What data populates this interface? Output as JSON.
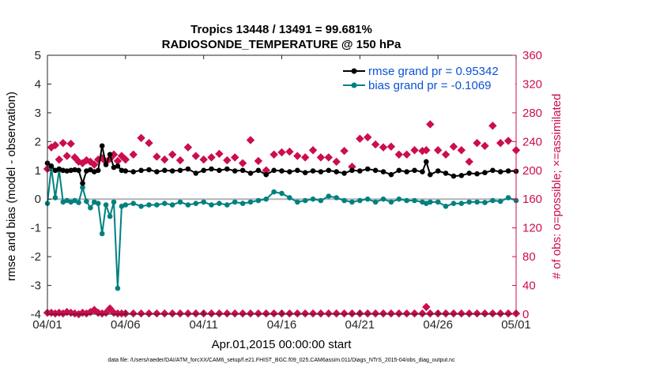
{
  "chart_data": {
    "type": "line",
    "title": "Tropics 13448 / 13491 = 99.681%",
    "subtitle": "RADIOSONDE_TEMPERATURE @ 150 hPa",
    "xlabel": "Apr.01,2015 00:00:00 start",
    "ylabel": "rmse and bias (model - observation)",
    "y2label": "# of obs: o=possible; ×=assimilated",
    "footer": "data file: /Users/raeder/DAI/ATM_forcXX/CAM6_setup/f.e21.FHIST_BGC.f09_025.CAM6assim.011/Diags_NTrS_2015-04/obs_diag_output.nc",
    "xlim": [
      0,
      30
    ],
    "ylim": [
      -4,
      5
    ],
    "y2lim": [
      0,
      360
    ],
    "x_ticks": [
      0,
      5,
      10,
      15,
      20,
      25,
      30
    ],
    "x_tick_labels": [
      "04/01",
      "04/06",
      "04/11",
      "04/16",
      "04/21",
      "04/26",
      "05/01"
    ],
    "y_ticks": [
      -4,
      -3,
      -2,
      -1,
      0,
      1,
      2,
      3,
      4,
      5
    ],
    "y_tick_labels": [
      "-4",
      "-3",
      "-2",
      "-1",
      "0",
      "1",
      "2",
      "3",
      "4",
      "5"
    ],
    "y2_ticks": [
      0,
      40,
      80,
      120,
      160,
      200,
      240,
      280,
      320,
      360
    ],
    "y2_tick_labels": [
      "0",
      "40",
      "80",
      "120",
      "160",
      "200",
      "240",
      "280",
      "320",
      "360"
    ],
    "zero_line": 0,
    "legend": [
      "rmse grand pr = 0.95342",
      "bias grand pr = -0.1069"
    ],
    "colors": {
      "rmse": "#000000",
      "bias": "#008080",
      "obs": "#cc0d4f",
      "legend_text": "#0a52d6",
      "zero_line": "#b3b3b3"
    },
    "x": [
      0.0,
      0.25,
      0.5,
      0.75,
      1.0,
      1.25,
      1.5,
      1.75,
      2.0,
      2.25,
      2.5,
      2.75,
      3.0,
      3.25,
      3.5,
      3.75,
      4.0,
      4.25,
      4.5,
      4.75,
      5.0,
      5.5,
      6.0,
      6.5,
      7.0,
      7.5,
      8.0,
      8.5,
      9.0,
      9.5,
      10.0,
      10.5,
      11.0,
      11.5,
      12.0,
      12.5,
      13.0,
      13.5,
      14.0,
      14.5,
      15.0,
      15.5,
      16.0,
      16.5,
      17.0,
      17.5,
      18.0,
      18.5,
      19.0,
      19.5,
      20.0,
      20.5,
      21.0,
      21.5,
      22.0,
      22.5,
      23.0,
      23.5,
      24.0,
      24.25,
      24.5,
      25.0,
      25.5,
      26.0,
      26.5,
      27.0,
      27.5,
      28.0,
      28.5,
      29.0,
      29.5,
      30.0
    ],
    "series": [
      {
        "name": "rmse",
        "axis": "left",
        "values": [
          1.25,
          1.15,
          1.0,
          1.05,
          1.0,
          0.98,
          1.0,
          1.02,
          1.0,
          0.55,
          0.98,
          1.02,
          0.95,
          1.0,
          1.85,
          1.2,
          1.55,
          1.1,
          1.15,
          1.0,
          0.98,
          0.95,
          1.0,
          1.02,
          0.95,
          1.0,
          0.98,
          1.0,
          1.05,
          0.9,
          1.0,
          1.05,
          1.0,
          1.05,
          0.98,
          1.0,
          0.9,
          1.0,
          0.85,
          1.0,
          0.98,
          0.95,
          1.0,
          0.92,
          0.98,
          0.95,
          1.0,
          0.95,
          0.9,
          1.0,
          0.98,
          1.05,
          1.0,
          0.95,
          0.85,
          1.0,
          0.95,
          1.0,
          0.95,
          1.3,
          0.85,
          0.98,
          0.9,
          0.8,
          0.82,
          0.9,
          0.88,
          0.92,
          1.0,
          0.95,
          0.98,
          0.97
        ]
      },
      {
        "name": "bias",
        "axis": "left",
        "values": [
          -0.15,
          1.1,
          0.05,
          1.0,
          -0.1,
          -0.05,
          -0.1,
          -0.05,
          -0.12,
          0.4,
          -0.08,
          -0.3,
          -0.1,
          -0.15,
          -1.2,
          -0.2,
          -0.6,
          -0.1,
          -3.1,
          -0.25,
          -0.2,
          -0.15,
          -0.25,
          -0.2,
          -0.2,
          -0.15,
          -0.2,
          -0.1,
          -0.2,
          -0.15,
          -0.1,
          -0.2,
          -0.15,
          -0.2,
          -0.1,
          -0.15,
          -0.1,
          -0.05,
          0.0,
          0.25,
          0.2,
          0.05,
          -0.1,
          -0.05,
          0.0,
          -0.05,
          0.1,
          0.05,
          -0.05,
          -0.1,
          -0.05,
          0.0,
          -0.1,
          0.0,
          -0.1,
          0.0,
          -0.05,
          -0.05,
          -0.1,
          -0.15,
          -0.1,
          -0.1,
          -0.25,
          -0.15,
          -0.15,
          -0.1,
          -0.1,
          -0.12,
          -0.05,
          -0.08,
          0.05,
          -0.05
        ]
      },
      {
        "name": "obs_possible",
        "axis": "right",
        "values": [
          202,
          232,
          235,
          215,
          238,
          220,
          237,
          218,
          212,
          210,
          214,
          212,
          208,
          215,
          217,
          212,
          216,
          222,
          213,
          220,
          215,
          222,
          245,
          238,
          219,
          215,
          222,
          214,
          232,
          220,
          215,
          218,
          223,
          214,
          218,
          210,
          242,
          213,
          200,
          222,
          225,
          226,
          220,
          218,
          228,
          218,
          218,
          212,
          227,
          205,
          244,
          246,
          236,
          232,
          233,
          222,
          222,
          228,
          227,
          228,
          264,
          228,
          222,
          233,
          228,
          212,
          238,
          234,
          262,
          238,
          241,
          228
        ]
      },
      {
        "name": "obs_assimilated",
        "axis": "right",
        "values": [
          2,
          2,
          1,
          2,
          1,
          3,
          2,
          1,
          0,
          2,
          1,
          3,
          6,
          2,
          1,
          2,
          8,
          2,
          1,
          1,
          1,
          1,
          1,
          1,
          1,
          1,
          1,
          1,
          1,
          1,
          1,
          1,
          1,
          1,
          1,
          1,
          1,
          1,
          1,
          1,
          1,
          1,
          1,
          1,
          1,
          1,
          1,
          1,
          1,
          1,
          1,
          1,
          1,
          1,
          1,
          1,
          1,
          1,
          1,
          10,
          1,
          1,
          1,
          1,
          1,
          1,
          1,
          1,
          1,
          1,
          1,
          1
        ]
      }
    ]
  }
}
